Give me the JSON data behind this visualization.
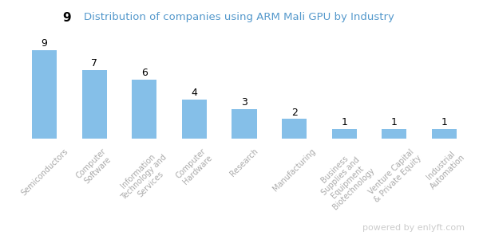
{
  "categories": [
    "Semiconductors",
    "Computer\nSoftware",
    "Information\nTechnology and\nServices",
    "Computer\nHardware",
    "Research",
    "Manufacturing",
    "Business\nSupplies and\nEquipment\nBiotechnology",
    "Venture Capital\n& Private Equity",
    "Industrial\nAutomation"
  ],
  "values": [
    9,
    7,
    6,
    4,
    3,
    2,
    1,
    1,
    1
  ],
  "bar_color": "#85bfe8",
  "title": "Distribution of companies using ARM Mali GPU by Industry",
  "title_color": "#5599cc",
  "background_color": "#ffffff",
  "value_fontsize": 9,
  "label_fontsize": 7,
  "label_color": "#aaaaaa",
  "watermark": "powered by enlyft.com",
  "watermark_color": "#cccccc",
  "watermark_fontsize": 8
}
